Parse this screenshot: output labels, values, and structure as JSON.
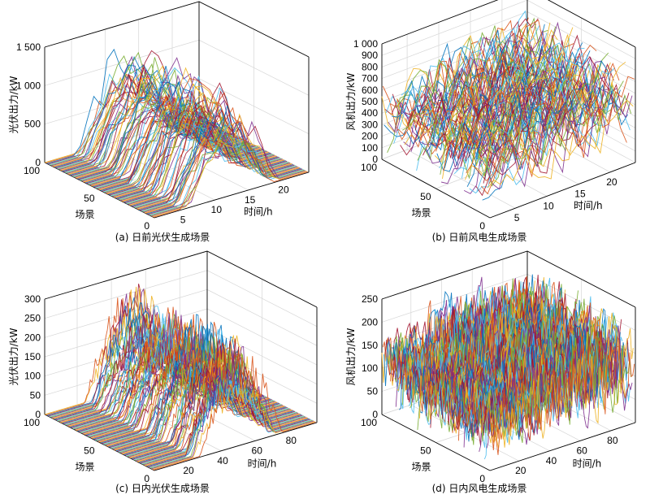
{
  "chart_data": [
    {
      "panel": "a",
      "type": "line",
      "caption": "(a) 日前光伏生成场景",
      "xlabel": "时间/h",
      "ylabel": "场景",
      "zlabel": "光伏出力/kW",
      "xlim": [
        1,
        24
      ],
      "ylim": [
        0,
        100
      ],
      "zlim": [
        0,
        1500
      ],
      "xticks": [
        5,
        10,
        15,
        20
      ],
      "yticks": [
        0,
        50,
        100
      ],
      "zticks": [
        "0",
        "500",
        "1 000",
        "1 500"
      ],
      "zticks_values": [
        0,
        500,
        1000,
        1500
      ],
      "grid": true,
      "series_count": 100,
      "profile": "pv",
      "peak_range": [
        800,
        1400
      ],
      "active_hours": [
        6,
        19
      ]
    },
    {
      "panel": "b",
      "type": "line",
      "caption": "(b) 日前风电生成场景",
      "xlabel": "时间/h",
      "ylabel": "场景",
      "zlabel": "风机出力/kW",
      "xlim": [
        1,
        24
      ],
      "ylim": [
        0,
        100
      ],
      "zlim": [
        0,
        1000
      ],
      "xticks": [
        5,
        10,
        15,
        20
      ],
      "yticks": [
        0,
        50,
        100
      ],
      "zticks": [
        "0",
        "100",
        "200",
        "300",
        "400",
        "500",
        "600",
        "700",
        "800",
        "900",
        "1 000"
      ],
      "zticks_values": [
        0,
        100,
        200,
        300,
        400,
        500,
        600,
        700,
        800,
        900,
        1000
      ],
      "grid": true,
      "series_count": 100,
      "profile": "wind",
      "value_range": [
        0,
        1000
      ]
    },
    {
      "panel": "c",
      "type": "line",
      "caption": "(c) 日内光伏生成场景",
      "xlabel": "时间/h",
      "ylabel": "场景",
      "zlabel": "光伏出力/kW",
      "xlim": [
        1,
        96
      ],
      "ylim": [
        0,
        100
      ],
      "zlim": [
        0,
        300
      ],
      "xticks": [
        20,
        40,
        60,
        80
      ],
      "yticks": [
        0,
        50,
        100
      ],
      "zticks": [
        "0",
        "50",
        "100",
        "150",
        "200",
        "250",
        "300"
      ],
      "zticks_values": [
        0,
        50,
        100,
        150,
        200,
        250,
        300
      ],
      "grid": true,
      "series_count": 100,
      "profile": "pv",
      "peak_range": [
        150,
        300
      ],
      "active_hours": [
        26,
        74
      ]
    },
    {
      "panel": "d",
      "type": "line",
      "caption": "(d) 日内风电生成场景",
      "xlabel": "时间/h",
      "ylabel": "场景",
      "zlabel": "风机出力/kW",
      "xlim": [
        1,
        96
      ],
      "ylim": [
        0,
        100
      ],
      "zlim": [
        0,
        250
      ],
      "xticks": [
        20,
        40,
        60,
        80
      ],
      "yticks": [
        0,
        50,
        100
      ],
      "zticks": [
        "0",
        "50",
        "100",
        "150",
        "200",
        "250"
      ],
      "zticks_values": [
        0,
        50,
        100,
        150,
        200,
        250
      ],
      "grid": true,
      "series_count": 100,
      "profile": "wind",
      "value_range": [
        0,
        250
      ]
    }
  ],
  "colors": [
    "#0072bd",
    "#d95319",
    "#edb120",
    "#7e2f8e",
    "#77ac30",
    "#4dbeee",
    "#a2142f"
  ]
}
